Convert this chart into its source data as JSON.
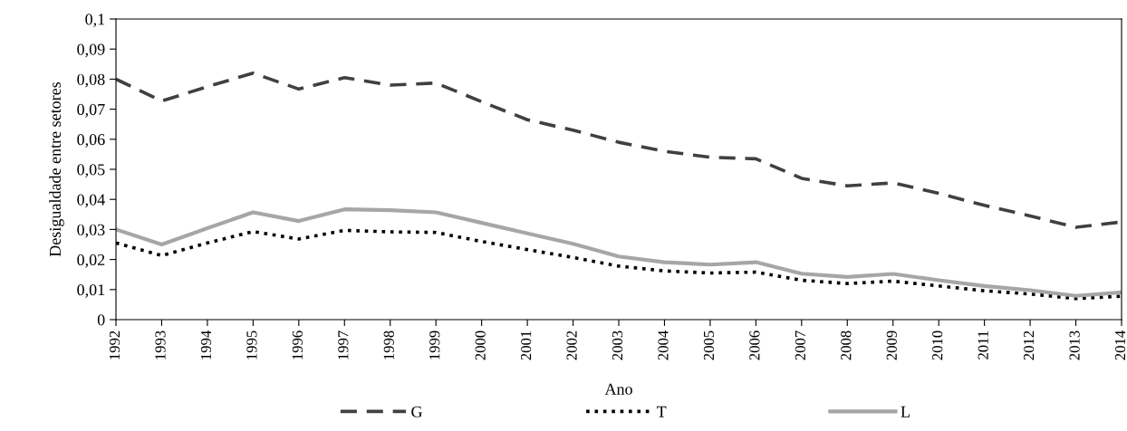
{
  "chart_data": {
    "type": "line",
    "xlabel": "Ano",
    "ylabel": "Desigualdade entre setores",
    "categories": [
      "1992",
      "1993",
      "1994",
      "1995",
      "1996",
      "1997",
      "1998",
      "1999",
      "2000",
      "2001",
      "2002",
      "2003",
      "2004",
      "2005",
      "2006",
      "2007",
      "2008",
      "2009",
      "2010",
      "2011",
      "2012",
      "2013",
      "2014"
    ],
    "series": [
      {
        "name": "G",
        "color": "#404040",
        "line_style": "dashed",
        "values": [
          0.08,
          0.0727,
          0.0775,
          0.082,
          0.0767,
          0.0805,
          0.078,
          0.0787,
          0.0725,
          0.0665,
          0.063,
          0.059,
          0.056,
          0.054,
          0.0535,
          0.047,
          0.0445,
          0.0455,
          0.042,
          0.038,
          0.0345,
          0.0307,
          0.0325
        ]
      },
      {
        "name": "T",
        "color": "#000000",
        "line_style": "dotted",
        "values": [
          0.0255,
          0.0213,
          0.0255,
          0.0293,
          0.0268,
          0.0297,
          0.0292,
          0.029,
          0.026,
          0.0233,
          0.0207,
          0.0178,
          0.0162,
          0.0155,
          0.0158,
          0.0131,
          0.012,
          0.0128,
          0.0112,
          0.0096,
          0.0085,
          0.007,
          0.0078
        ]
      },
      {
        "name": "L",
        "color": "#a6a6a6",
        "line_style": "solid",
        "values": [
          0.03,
          0.025,
          0.0304,
          0.0357,
          0.0328,
          0.0367,
          0.0364,
          0.0357,
          0.0322,
          0.0287,
          0.0252,
          0.021,
          0.0191,
          0.0183,
          0.0191,
          0.0153,
          0.0142,
          0.0152,
          0.0131,
          0.0112,
          0.0098,
          0.0079,
          0.0091
        ]
      }
    ],
    "ylim": [
      0,
      0.1
    ],
    "yticks": [
      0,
      {
        "value": 0.01,
        "label": "0,01"
      },
      {
        "value": 0.02,
        "label": "0,02"
      },
      {
        "value": 0.03,
        "label": "0,03"
      },
      {
        "value": 0.04,
        "label": "0,04"
      },
      {
        "value": 0.05,
        "label": "0,05"
      },
      {
        "value": 0.06,
        "label": "0,06"
      },
      {
        "value": 0.07,
        "label": "0,07"
      },
      {
        "value": 0.08,
        "label": "0,08"
      },
      {
        "value": 0.09,
        "label": "0,09"
      },
      {
        "value": 0.1,
        "label": "0,1"
      }
    ],
    "grid": false,
    "legend": "bottom",
    "marker": "none"
  }
}
